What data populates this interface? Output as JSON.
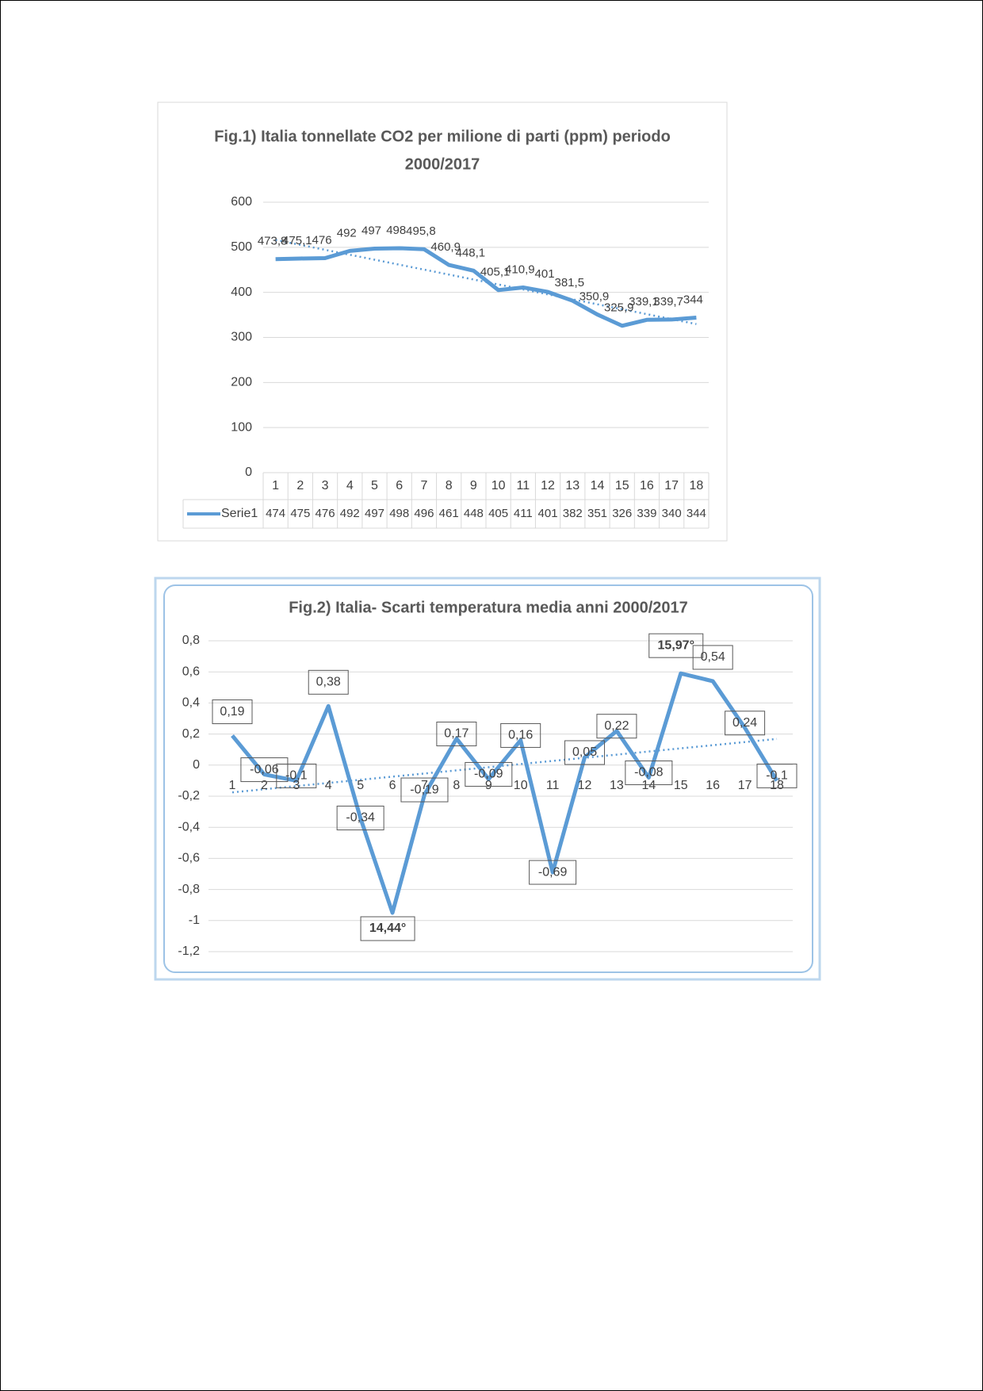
{
  "chart_data": [
    {
      "type": "line",
      "title_lines": [
        "Fig.1) Italia tonnellate CO2 per  milione di parti (ppm) periodo",
        "2000/2017"
      ],
      "categories": [
        1,
        2,
        3,
        4,
        5,
        6,
        7,
        8,
        9,
        10,
        11,
        12,
        13,
        14,
        15,
        16,
        17,
        18
      ],
      "series": [
        {
          "name": "Serie1",
          "color": "#5b9bd5",
          "values": [
            473.8,
            475.1,
            476,
            492,
            497,
            498,
            495.8,
            460.9,
            448.1,
            405.1,
            410.9,
            401,
            381.5,
            350.9,
            325.9,
            339.1,
            339.7,
            344
          ],
          "value_labels": [
            "473,8",
            "475,1",
            "476",
            "492",
            "497",
            "498",
            "495,8",
            "460,9",
            "448,1",
            "405,1",
            "410,9",
            "401",
            "381,5",
            "350,9",
            "325,9",
            "339,1",
            "339,7",
            "344"
          ]
        }
      ],
      "table_values": [
        474,
        475,
        476,
        492,
        497,
        498,
        496,
        461,
        448,
        405,
        411,
        401,
        382,
        351,
        326,
        339,
        340,
        344
      ],
      "ylim": [
        0,
        600
      ],
      "yticks": [
        0,
        100,
        200,
        300,
        400,
        500,
        600
      ],
      "grid": true,
      "trendline": true
    },
    {
      "type": "line",
      "title": "Fig.2) Italia- Scarti temperatura media anni 2000/2017",
      "categories": [
        1,
        2,
        3,
        4,
        5,
        6,
        7,
        8,
        9,
        10,
        11,
        12,
        13,
        14,
        15,
        16,
        17,
        18
      ],
      "series": [
        {
          "color": "#5b9bd5",
          "values": [
            0.19,
            -0.06,
            -0.1,
            0.38,
            -0.34,
            -0.95,
            -0.19,
            0.17,
            -0.09,
            0.16,
            -0.69,
            0.05,
            0.22,
            -0.08,
            0.59,
            0.54,
            0.24,
            -0.1
          ],
          "value_labels": [
            "0,19",
            "-0,06",
            "-0,1",
            "0,38",
            "-0,34",
            null,
            "-0,19",
            "0,17",
            "-0,09",
            "0,16",
            "-0,69",
            "0,05",
            "0,22",
            "-0,08",
            null,
            "0,54",
            "0,24",
            "-0,1"
          ]
        }
      ],
      "annotations": [
        {
          "x": 6,
          "text": "14,44°"
        },
        {
          "x": 15,
          "text": "15,97°"
        }
      ],
      "ylim": [
        -1.2,
        0.8
      ],
      "yticks": [
        {
          "value": -1.2,
          "label": "-1,2"
        },
        {
          "value": -1,
          "label": "-1"
        },
        {
          "value": -0.8,
          "label": "-0,8"
        },
        {
          "value": -0.6,
          "label": "-0,6"
        },
        {
          "value": -0.4,
          "label": "-0,4"
        },
        {
          "value": -0.2,
          "label": "-0,2"
        },
        0,
        {
          "value": 0.2,
          "label": "0,2"
        },
        {
          "value": 0.4,
          "label": "0,4"
        },
        {
          "value": 0.6,
          "label": "0,6"
        },
        {
          "value": 0.8,
          "label": "0,8"
        }
      ],
      "grid": true,
      "trendline": true
    }
  ]
}
